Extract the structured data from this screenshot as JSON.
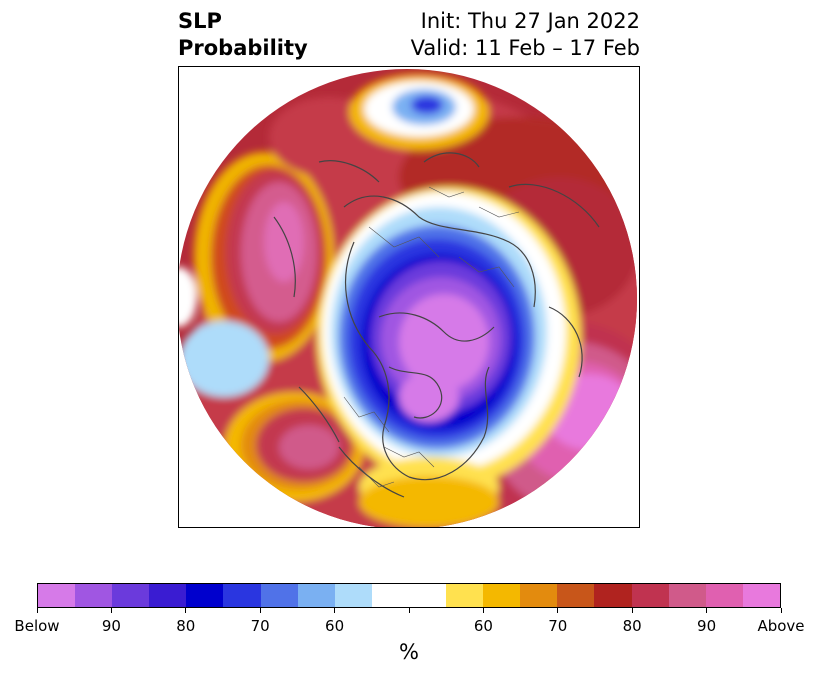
{
  "title": {
    "left_line1": "SLP",
    "left_line2": "Probability",
    "right_line1": "Init: Thu 27 Jan 2022",
    "right_line2": "Valid: 11 Feb – 17 Feb"
  },
  "colorbar": {
    "unit": "%",
    "colors": [
      "#d67ae8",
      "#a056e2",
      "#6b3adc",
      "#3a1cd2",
      "#0000cd",
      "#2a36e0",
      "#5072e8",
      "#7ab0f2",
      "#aedcfa",
      "#ffffff",
      "#ffffff",
      "#ffe14f",
      "#f4b800",
      "#e38b0e",
      "#c8561a",
      "#b0231f",
      "#c03350",
      "#d05a8a",
      "#e060b0",
      "#e879dd"
    ],
    "labels": [
      {
        "text": "Below",
        "index": 0
      },
      {
        "text": "90",
        "index": 2
      },
      {
        "text": "80",
        "index": 4
      },
      {
        "text": "70",
        "index": 6
      },
      {
        "text": "60",
        "index": 8
      },
      {
        "text": "",
        "index": 10
      },
      {
        "text": "60",
        "index": 12
      },
      {
        "text": "70",
        "index": 14
      },
      {
        "text": "80",
        "index": 16
      },
      {
        "text": "90",
        "index": 18
      },
      {
        "text": "Above",
        "index": 20
      }
    ]
  },
  "map": {
    "projection": "north-polar-stereographic",
    "features": [
      "probability-shading",
      "coastlines",
      "country-borders",
      "us-state-borders"
    ]
  }
}
